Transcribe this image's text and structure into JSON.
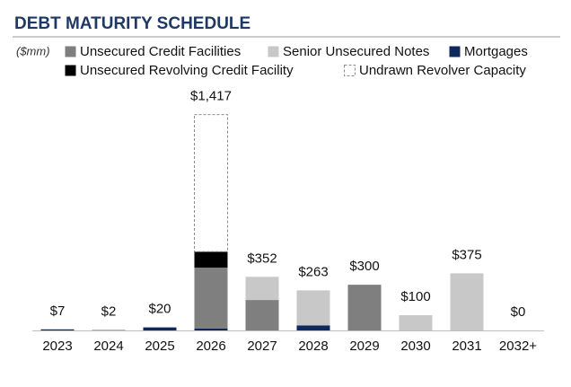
{
  "chart_data": {
    "type": "stacked-bar",
    "title": "DEBT MATURITY SCHEDULE",
    "unit_label": "($mm)",
    "categories": [
      "2023",
      "2024",
      "2025",
      "2026",
      "2027",
      "2028",
      "2029",
      "2030",
      "2031",
      "2032+"
    ],
    "series": [
      {
        "name": "Unsecured Credit Facilities",
        "color": "#7f7f7f",
        "values": [
          0,
          0,
          0,
          400,
          200,
          0,
          300,
          0,
          0,
          0
        ]
      },
      {
        "name": "Senior Unsecured Notes",
        "color": "#c8c8c8",
        "values": [
          0,
          0,
          0,
          0,
          152,
          230,
          0,
          100,
          375,
          0
        ]
      },
      {
        "name": "Mortgages",
        "color": "#10295c",
        "values": [
          7,
          2,
          20,
          12,
          0,
          33,
          0,
          0,
          0,
          0
        ]
      },
      {
        "name": "Unsecured Revolving Credit Facility",
        "color": "#000000",
        "values": [
          0,
          0,
          0,
          105,
          0,
          0,
          0,
          0,
          0,
          0
        ]
      },
      {
        "name": "Undrawn Revolver Capacity",
        "color": "#8c8c8c",
        "style": "dashed",
        "values": [
          0,
          0,
          0,
          900,
          0,
          0,
          0,
          0,
          0,
          0
        ]
      }
    ],
    "stack_order": [
      2,
      0,
      1,
      3,
      4
    ],
    "totals": [
      7,
      2,
      20,
      1417,
      352,
      263,
      300,
      100,
      375,
      0
    ],
    "total_labels": [
      "$7",
      "$2",
      "$20",
      "$1,417",
      "$352",
      "$263",
      "$300",
      "$100",
      "$375",
      "$0"
    ],
    "ylim": [
      0,
      1450
    ]
  }
}
